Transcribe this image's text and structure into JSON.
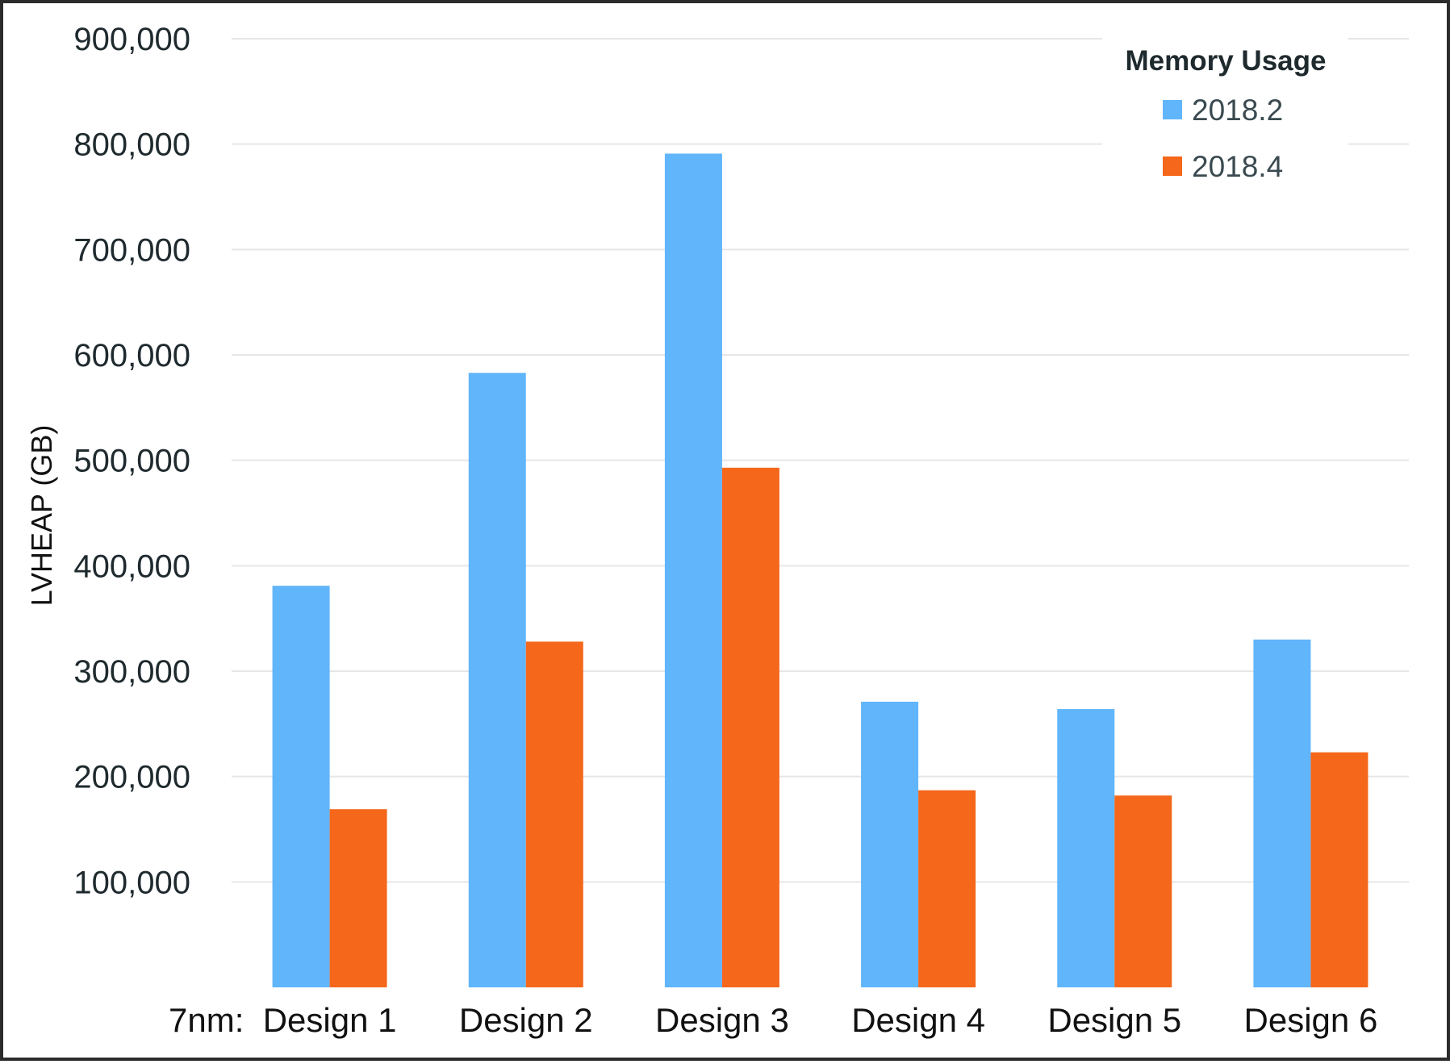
{
  "chart_data": {
    "type": "bar",
    "categories": [
      "Design 1",
      "Design 2",
      "Design 3",
      "Design 4",
      "Design 5",
      "Design 6"
    ],
    "category_prefix": "7nm:",
    "series": [
      {
        "name": "2018.2",
        "color": "#61b5fb",
        "values": [
          381000,
          583000,
          791000,
          271000,
          264000,
          330000
        ]
      },
      {
        "name": "2018.4",
        "color": "#f5671b",
        "values": [
          169000,
          328000,
          493000,
          187000,
          182000,
          223000
        ]
      }
    ],
    "ylabel": "LVHEAP (GB)",
    "xlabel": "",
    "ylim": [
      0,
      900000
    ],
    "yticks": [
      100000,
      200000,
      300000,
      400000,
      500000,
      600000,
      700000,
      800000,
      900000
    ],
    "ytick_labels": [
      "100,000",
      "200,000",
      "300,000",
      "400,000",
      "500,000",
      "600,000",
      "700,000",
      "800,000",
      "900,000"
    ],
    "grid": true,
    "legend": {
      "title": "Memory Usage",
      "position": "top-right"
    }
  }
}
